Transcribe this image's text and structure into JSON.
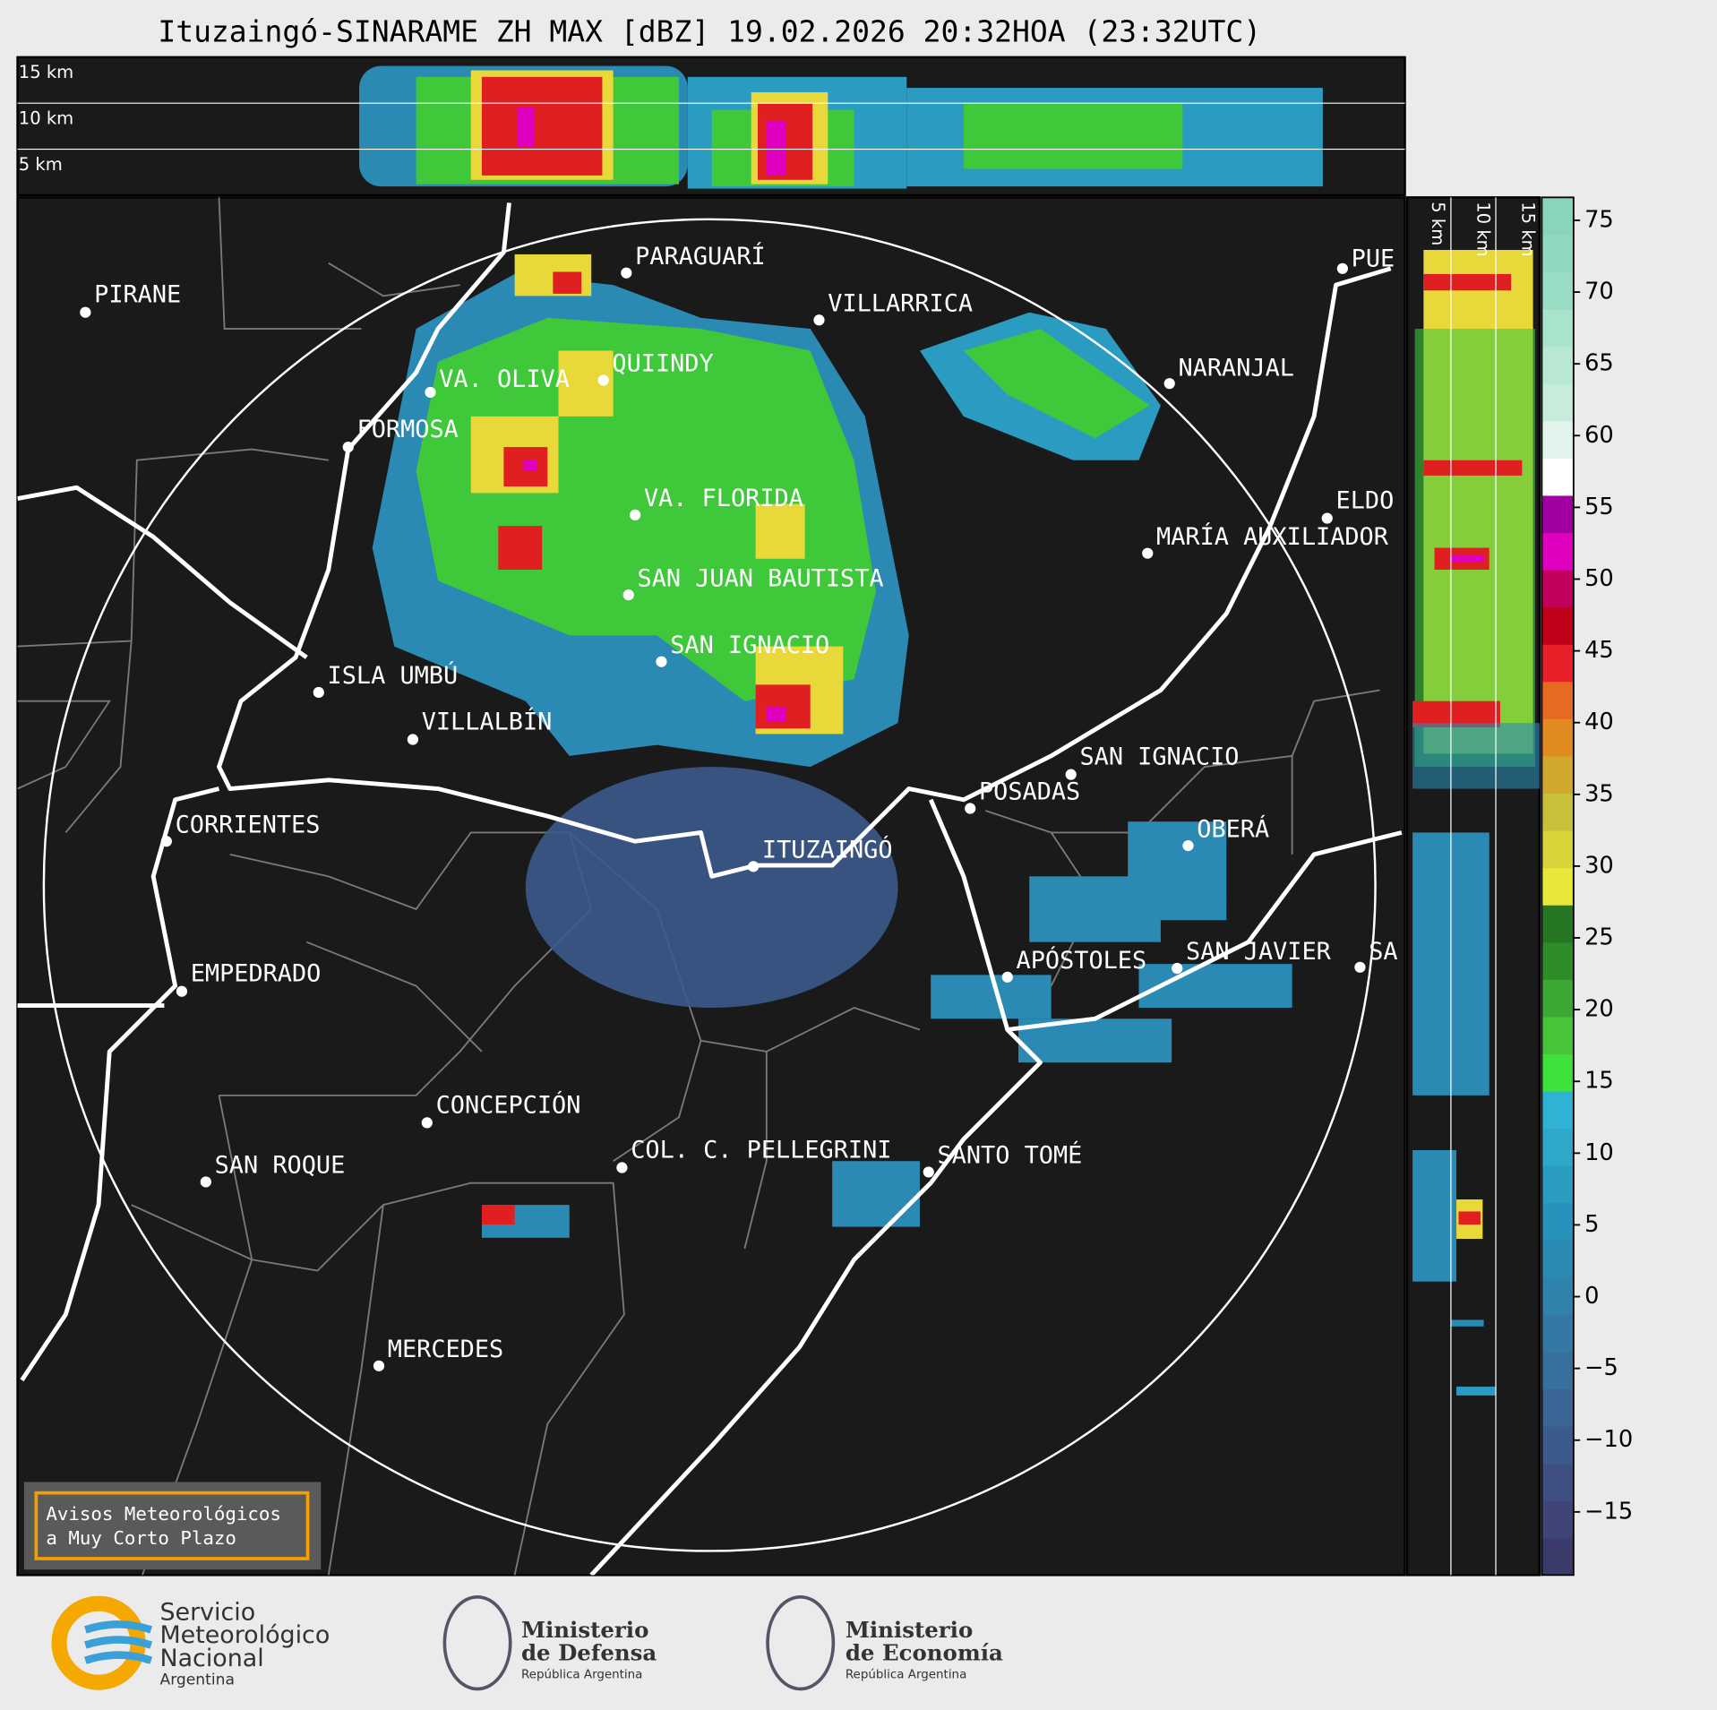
{
  "title": "Ituzaingó-SINARAME ZH MAX [dBZ] 19.02.2026 20:32HOA (23:32UTC)",
  "cross_section_labels": {
    "top": [
      "15 km",
      "10 km",
      "5 km"
    ],
    "side": [
      "5 km",
      "10 km",
      "15 km"
    ]
  },
  "places": [
    "PIRANE",
    "PARAGUARÍ",
    "VILLARRICA",
    "NARANJAL",
    "VA. OLIVA",
    "QUIINDY",
    "FORMOSA",
    "VA. FLORIDA",
    "SAN JUAN BAUTISTA",
    "SAN IGNACIO",
    "ISLA UMBÚ",
    "VILLALBÍN",
    "CORRIENTES",
    "EMPEDRADO",
    "CONCEPCIÓN",
    "SAN ROQUE",
    "COL. C. PELLEGRINI",
    "SANTO TOMÉ",
    "MERCEDES",
    "ITUZAINGÓ",
    "POSADAS",
    "SAN IGNACIO",
    "OBERÁ",
    "APÓSTOLES",
    "SAN JAVIER",
    "SA",
    "PUE",
    "ELDO",
    "MARÍA AUXILIADOR"
  ],
  "colorbar": {
    "clim": [
      -19.4,
      76.6
    ],
    "ticks": [
      75,
      70,
      65,
      60,
      55,
      50,
      45,
      40,
      35,
      30,
      25,
      20,
      15,
      10,
      5,
      0,
      {
        "value": -5,
        "label": "−5"
      },
      {
        "value": -10,
        "label": "−10"
      },
      {
        "value": -15,
        "label": "−15"
      }
    ],
    "colors": [
      "#3b3b6b",
      "#3f4577",
      "#3f4f82",
      "#3d5a8c",
      "#3b6595",
      "#37709d",
      "#3478a4",
      "#2f82ac",
      "#2a8ab3",
      "#2792bb",
      "#2a9cc2",
      "#2ea7cb",
      "#2fb2d4",
      "#3fe03a",
      "#46c43a",
      "#3aa832",
      "#2e8c2a",
      "#267624",
      "#e8e83a",
      "#d8d43a",
      "#c8c038",
      "#d0a830",
      "#e08a20",
      "#e86a20",
      "#e8202a",
      "#c00018",
      "#c0005a",
      "#e000c0",
      "#a000a0",
      "#ffffff",
      "#e0f4ec",
      "#c8ecdc",
      "#b8e8d4",
      "#a8e4cc",
      "#98dcc4",
      "#90d8c0",
      "#88d4bc"
    ]
  },
  "warning_box": [
    "Avisos Meteorológicos",
    "a Muy Corto Plazo"
  ],
  "logos": {
    "smn": [
      "Servicio",
      "Meteorológico",
      "Nacional",
      "Argentina"
    ],
    "defensa": [
      "Ministerio",
      "de Defensa",
      "República Argentina"
    ],
    "economia": [
      "Ministerio",
      "de Economía",
      "República Argentina"
    ]
  }
}
